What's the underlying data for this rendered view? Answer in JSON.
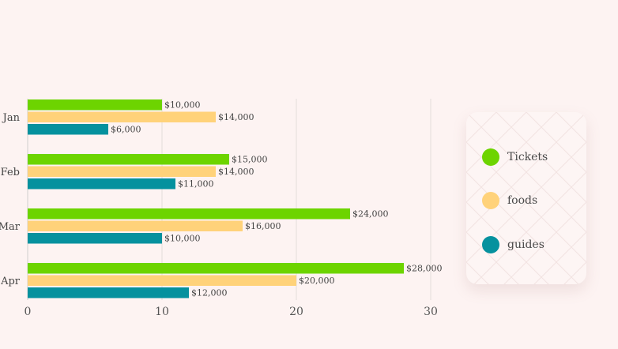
{
  "chart_data": {
    "type": "bar",
    "orientation": "horizontal",
    "categories": [
      "Jan",
      "Feb",
      "Mar",
      "Apr"
    ],
    "series": [
      {
        "name": "Tickets",
        "color": "#6dd400",
        "values": [
          10,
          15,
          24,
          28
        ],
        "labels": [
          "$10,000",
          "$15,000",
          "$24,000",
          "$28,000"
        ]
      },
      {
        "name": "foods",
        "color": "#ffd27a",
        "values": [
          14,
          14,
          16,
          20
        ],
        "labels": [
          "$14,000",
          "$14,000",
          "$16,000",
          "$20,000"
        ]
      },
      {
        "name": "guides",
        "color": "#05919e",
        "values": [
          6,
          11,
          10,
          12
        ],
        "labels": [
          "$6,000",
          "$11,000",
          "$10,000",
          "$12,000"
        ]
      }
    ],
    "xticks": [
      0,
      10,
      20,
      30
    ],
    "xlim": [
      0,
      30
    ],
    "grid": true,
    "legend_position": "right"
  }
}
